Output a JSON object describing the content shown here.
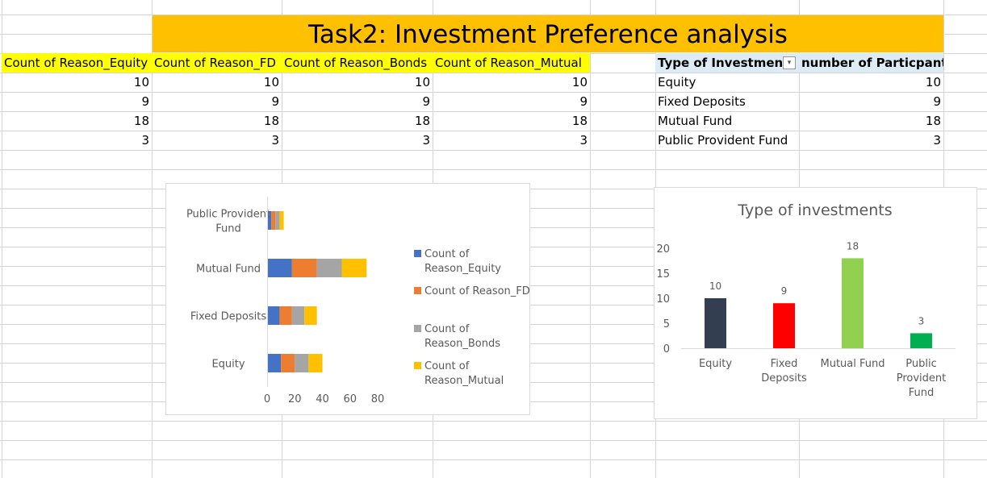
{
  "title": "Task2: Investment Preference analysis",
  "left_table": {
    "headers": [
      "Count of Reason_Equity",
      "Count of Reason_FD",
      "Count of Reason_Bonds",
      "Count of Reason_Mutual"
    ],
    "rows": [
      [
        "10",
        "10",
        "10",
        "10"
      ],
      [
        "9",
        "9",
        "9",
        "9"
      ],
      [
        "18",
        "18",
        "18",
        "18"
      ],
      [
        "3",
        "3",
        "3",
        "3"
      ]
    ]
  },
  "right_table": {
    "header_type": "Type of Investment",
    "header_count": "number of Particpants",
    "filter_icon": "dropdown-arrow",
    "rows": [
      {
        "type": "Equity",
        "count": "10"
      },
      {
        "type": "Fixed Deposits",
        "count": "9"
      },
      {
        "type": "Mutual Fund",
        "count": "18"
      },
      {
        "type": "Public Provident Fund",
        "count": "3"
      }
    ]
  },
  "colors": {
    "banner": "#FFC000",
    "header_yellow": "#FFFF00",
    "header_blue": "#DDEBF7",
    "gridline": "#d4d4d4"
  },
  "chart_data": [
    {
      "type": "bar",
      "orientation": "horizontal",
      "stacked": true,
      "categories": [
        "Equity",
        "Fixed Deposits",
        "Mutual Fund",
        "Public Provident Fund"
      ],
      "category_label_lines": [
        [
          "Equity"
        ],
        [
          "Fixed Deposits"
        ],
        [
          "Mutual Fund"
        ],
        [
          "Public Provident",
          "Fund"
        ]
      ],
      "series": [
        {
          "name": "Count of Reason_Equity",
          "values": [
            10,
            9,
            18,
            3
          ],
          "color": "#4472C4",
          "legend_lines": [
            "Count of",
            "Reason_Equity"
          ]
        },
        {
          "name": "Count of Reason_FD",
          "values": [
            10,
            9,
            18,
            3
          ],
          "color": "#ED7D31",
          "legend_lines": [
            "Count of Reason_FD"
          ]
        },
        {
          "name": "Count of Reason_Bonds",
          "values": [
            10,
            9,
            18,
            3
          ],
          "color": "#A5A5A5",
          "legend_lines": [
            "Count of",
            "Reason_Bonds"
          ]
        },
        {
          "name": "Count of Reason_Mutual",
          "values": [
            10,
            9,
            18,
            3
          ],
          "color": "#FFC000",
          "legend_lines": [
            "Count of",
            "Reason_Mutual"
          ]
        }
      ],
      "xlim": [
        0,
        80
      ],
      "xticks": [
        "0",
        "20",
        "40",
        "60",
        "80"
      ],
      "legend": "right"
    },
    {
      "type": "bar",
      "title": "Type of investments",
      "categories": [
        "Equity",
        "Fixed Deposits",
        "Mutual Fund",
        "Public Provident Fund"
      ],
      "category_label_lines": [
        [
          "Equity"
        ],
        [
          "Fixed",
          "Deposits"
        ],
        [
          "Mutual Fund"
        ],
        [
          "Public",
          "Provident",
          "Fund"
        ]
      ],
      "values": [
        10,
        9,
        18,
        3
      ],
      "data_labels": [
        "10",
        "9",
        "18",
        "3"
      ],
      "colors": [
        "#333F50",
        "#FF0000",
        "#92D050",
        "#00B050"
      ],
      "ylim": [
        0,
        20
      ],
      "yticks": [
        "0",
        "5",
        "10",
        "15",
        "20"
      ]
    }
  ]
}
